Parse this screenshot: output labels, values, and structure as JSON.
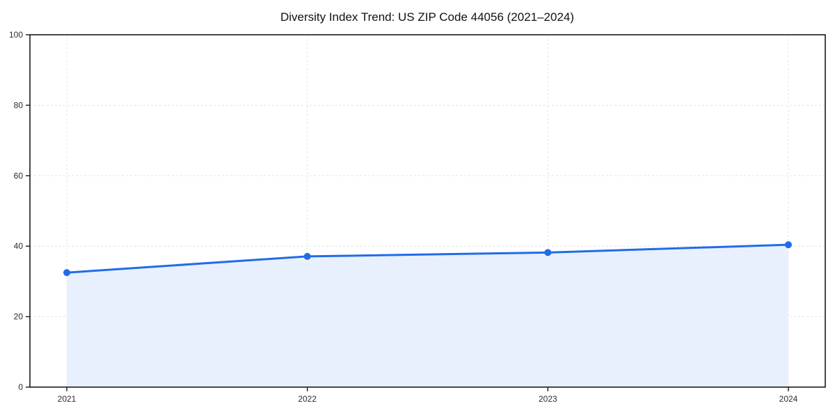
{
  "page": {
    "title": "Diversity Index Trend: US ZIP Code 44056 (2021–2024)"
  },
  "chart_data": {
    "type": "area",
    "title": "Diversity Index Trend: US ZIP Code 44056 (2021–2024)",
    "categories": [
      "2021",
      "2022",
      "2023",
      "2024"
    ],
    "series": [
      {
        "name": "Diversity Index",
        "values": [
          32.5,
          37.1,
          38.2,
          40.4
        ]
      }
    ],
    "xlabel": "",
    "ylabel": "",
    "ylim": [
      0,
      100
    ],
    "yticks": [
      0,
      20,
      40,
      60,
      80,
      100
    ],
    "grid": "dashed-both",
    "legend_position": "none",
    "colors": {
      "line": "#1f6ce8",
      "marker": "#1f6ce8",
      "fill": "#e9f0fd",
      "gridline": "#e3e3e3",
      "spine": "#1a1a1a",
      "tick_text": "#2b2b2b",
      "title_text": "#111111",
      "background": "#ffffff"
    }
  }
}
